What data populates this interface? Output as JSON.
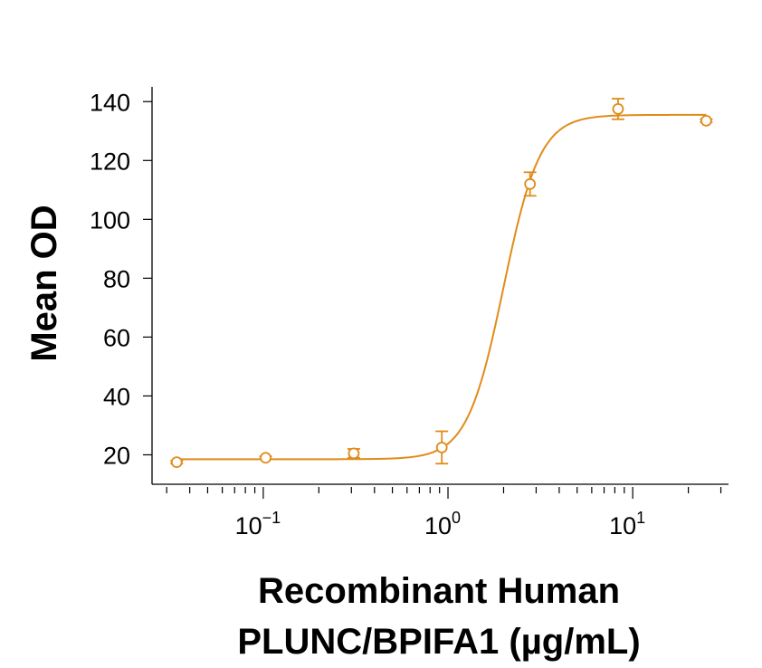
{
  "chart_data": {
    "type": "scatter",
    "title": "",
    "xlabel": "Recombinant Human PLUNC/BPIFA1 (µg/mL)",
    "xlabel_lines": [
      "Recombinant Human",
      "PLUNC/BPIFA1 (µg/mL)"
    ],
    "ylabel": "Mean OD",
    "x_scale": "log",
    "xlim": [
      0.025,
      33
    ],
    "ylim": [
      10,
      145
    ],
    "x_ticks": [
      {
        "value": 0.1,
        "base": "10",
        "exp": "−1"
      },
      {
        "value": 1,
        "base": "10",
        "exp": "0"
      },
      {
        "value": 10,
        "base": "10",
        "exp": "1"
      }
    ],
    "y_ticks": [
      20,
      40,
      60,
      80,
      100,
      120,
      140
    ],
    "grid": false,
    "legend": "none",
    "color": "#e08c1a",
    "series": [
      {
        "points": [
          {
            "x": 0.034,
            "y": 17.5,
            "err": 0.5
          },
          {
            "x": 0.103,
            "y": 19.0,
            "err": 0.5
          },
          {
            "x": 0.309,
            "y": 20.5,
            "err": 1.5
          },
          {
            "x": 0.926,
            "y": 22.5,
            "err": 5.5
          },
          {
            "x": 2.78,
            "y": 112.0,
            "err": 4.0
          },
          {
            "x": 8.33,
            "y": 137.5,
            "err": 3.5
          },
          {
            "x": 25.0,
            "y": 133.5,
            "err": 0.5
          }
        ],
        "fit": {
          "model": "4PL",
          "bottom": 18.5,
          "top": 135.5,
          "ec50": 2.0,
          "hill": 4.4
        }
      }
    ]
  }
}
